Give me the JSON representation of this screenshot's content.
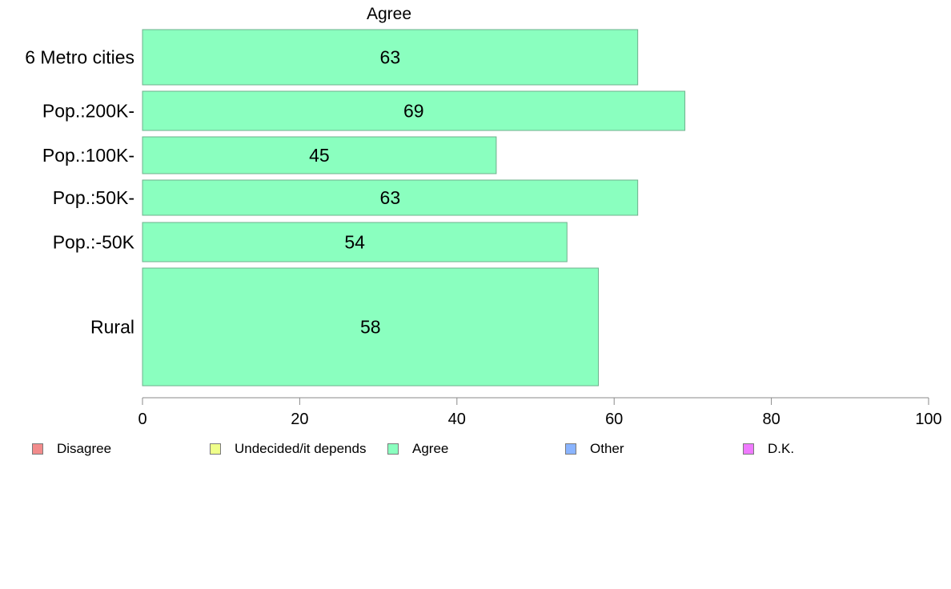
{
  "chart_data": {
    "type": "bar",
    "orientation": "horizontal",
    "title": "Agree",
    "categories": [
      "6 Metro cities",
      "Pop.:200K-",
      "Pop.:100K-",
      "Pop.:50K-",
      "Pop.:-50K",
      "Rural"
    ],
    "series": [
      {
        "name": "Agree",
        "values": [
          63,
          69,
          45,
          63,
          54,
          58
        ],
        "color": "#8affbf"
      }
    ],
    "data_labels": [
      "63",
      "69",
      "45",
      "63",
      "54",
      "58"
    ],
    "xlim": [
      0,
      100
    ],
    "x_ticks": [
      "0",
      "20",
      "40",
      "60",
      "80",
      "100"
    ],
    "xlabel": "",
    "ylabel": "",
    "grid": false,
    "legend_placement": "bottom"
  },
  "legend": [
    {
      "label": "Disagree",
      "color": "#f28b8b"
    },
    {
      "label": "Undecided/it depends",
      "color": "#efff8a"
    },
    {
      "label": "Agree",
      "color": "#8affbf"
    },
    {
      "label": "Other",
      "color": "#8ab4ff"
    },
    {
      "label": "D.K.",
      "color": "#ef7aff"
    }
  ]
}
